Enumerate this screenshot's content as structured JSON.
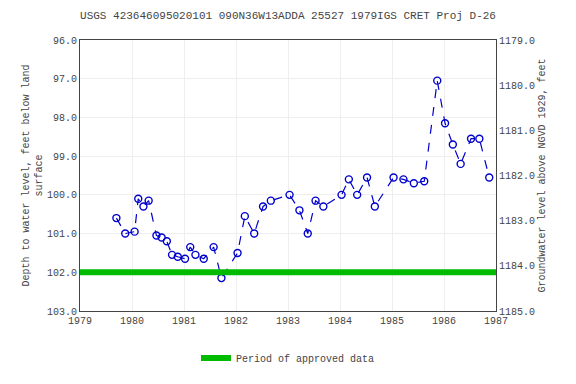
{
  "chart_data": {
    "type": "line",
    "title": "USGS 423646095020101 090N36W13ADDA 25527 1979IGS CRET Proj D-26",
    "ylabel": "Depth to water level, feet below land\nsurface",
    "y2label": "Groundwater level above NGVD 1929, feet",
    "xlim": [
      1979,
      1987
    ],
    "xticks": [
      1979,
      1980,
      1981,
      1982,
      1983,
      1984,
      1985,
      1986,
      1987
    ],
    "ylim": [
      96.0,
      103.0
    ],
    "yticks": [
      {
        "value": 96.0,
        "label": "96.0"
      },
      {
        "value": 97.0,
        "label": "97.0"
      },
      {
        "value": 98.0,
        "label": "98.0"
      },
      {
        "value": 99.0,
        "label": "99.0"
      },
      {
        "value": 100.0,
        "label": "100.0"
      },
      {
        "value": 101.0,
        "label": "101.0"
      },
      {
        "value": 102.0,
        "label": "102.0"
      },
      {
        "value": 103.0,
        "label": "103.0"
      }
    ],
    "y2lim": [
      1179.0,
      1185.0
    ],
    "y2ticks": [
      {
        "value": 1179.0,
        "label": "1179.0"
      },
      {
        "value": 1180.0,
        "label": "1180.0"
      },
      {
        "value": 1181.0,
        "label": "1181.0"
      },
      {
        "value": 1182.0,
        "label": "1182.0"
      },
      {
        "value": 1183.0,
        "label": "1183.0"
      },
      {
        "value": 1184.0,
        "label": "1184.0"
      },
      {
        "value": 1185.0,
        "label": "1185.0"
      }
    ],
    "grid": true,
    "legend": "bottom",
    "series": [
      {
        "color": "#0000CC",
        "line_style": "dashed",
        "marker": "open_circle",
        "x": [
          1979.7,
          1979.87,
          1980.05,
          1980.12,
          1980.22,
          1980.32,
          1980.47,
          1980.57,
          1980.67,
          1980.77,
          1980.88,
          1981.02,
          1981.12,
          1981.22,
          1981.38,
          1981.57,
          1981.72,
          1982.03,
          1982.17,
          1982.35,
          1982.52,
          1982.67,
          1983.03,
          1983.22,
          1983.38,
          1983.53,
          1983.68,
          1984.03,
          1984.17,
          1984.33,
          1984.52,
          1984.67,
          1985.03,
          1985.22,
          1985.42,
          1985.62,
          1985.87,
          1986.02,
          1986.17,
          1986.32,
          1986.52,
          1986.68,
          1986.87
        ],
        "values": [
          100.6,
          101.0,
          100.95,
          100.1,
          100.3,
          100.15,
          101.05,
          101.1,
          101.2,
          101.55,
          101.6,
          101.65,
          101.35,
          101.55,
          101.65,
          101.35,
          102.15,
          101.5,
          100.55,
          101.0,
          100.3,
          100.15,
          100.0,
          100.4,
          101.0,
          100.15,
          100.3,
          100.0,
          99.6,
          100.0,
          99.55,
          100.3,
          99.55,
          99.6,
          99.7,
          99.65,
          97.05,
          98.15,
          98.7,
          99.2,
          98.55,
          98.55,
          99.55
        ]
      },
      {
        "name": "Period of approved data",
        "color": "#00BB00",
        "line_style": "solid",
        "x": [
          1979,
          1987
        ],
        "values": [
          102.0,
          102.0
        ]
      }
    ]
  }
}
